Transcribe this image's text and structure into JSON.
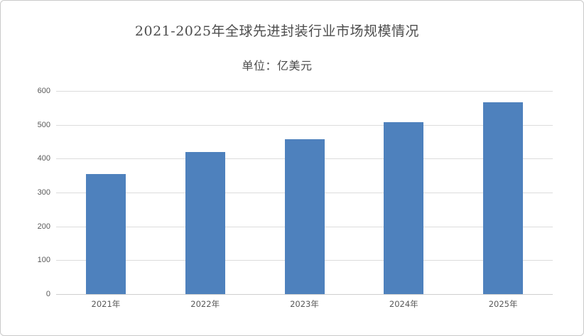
{
  "window": {
    "background": "#ffffff",
    "border_color": "#c9c9c9"
  },
  "chart_data": {
    "type": "bar",
    "title": "2021-2025年全球先进封装行业市场规模情况",
    "subtitle": "单位：亿美元",
    "unit": "亿美元",
    "categories": [
      "2021年",
      "2022年",
      "2023年",
      "2024年",
      "2025年"
    ],
    "values": [
      355,
      420,
      457,
      507,
      566
    ],
    "xlabel": "",
    "ylabel": "",
    "ylim": [
      0,
      600
    ],
    "yticks": [
      0,
      100,
      200,
      300,
      400,
      500,
      600
    ],
    "grid": true,
    "legend": false,
    "legend_position": "none",
    "bar_color": "#4e81bd",
    "gridline_color": "#dcdcdc",
    "axis_color": "#cfcfcf",
    "title_color": "#4d4d4d",
    "tick_color": "#595959"
  }
}
